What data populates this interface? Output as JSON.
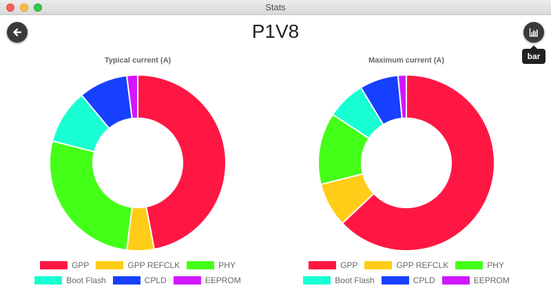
{
  "window": {
    "title": "Stats"
  },
  "header": {
    "title": "P1V8",
    "back_icon": "arrow-left-icon",
    "chart_toggle_icon": "bar-chart-icon",
    "tooltip": "bar"
  },
  "colors": {
    "GPP": "#ff1744",
    "GPP REFCLK": "#ffcd17",
    "PHY": "#44ff17",
    "Boot Flash": "#17ffd2",
    "CPLD": "#1740ff",
    "EEPROM": "#d117ff"
  },
  "chart_data": [
    {
      "type": "pie",
      "subtype": "doughnut",
      "title": "Typical current (A)",
      "labels": [
        "GPP",
        "GPP REFCLK",
        "PHY",
        "Boot Flash",
        "CPLD",
        "EEPROM"
      ],
      "values": [
        0.47,
        0.05,
        0.27,
        0.1,
        0.09,
        0.02
      ],
      "legend_position": "bottom"
    },
    {
      "type": "pie",
      "subtype": "doughnut",
      "title": "Maximum current (A)",
      "labels": [
        "GPP",
        "GPP REFCLK",
        "PHY",
        "Boot Flash",
        "CPLD",
        "EEPROM"
      ],
      "values": [
        0.62,
        0.08,
        0.13,
        0.07,
        0.07,
        0.015
      ],
      "legend_position": "bottom"
    }
  ]
}
